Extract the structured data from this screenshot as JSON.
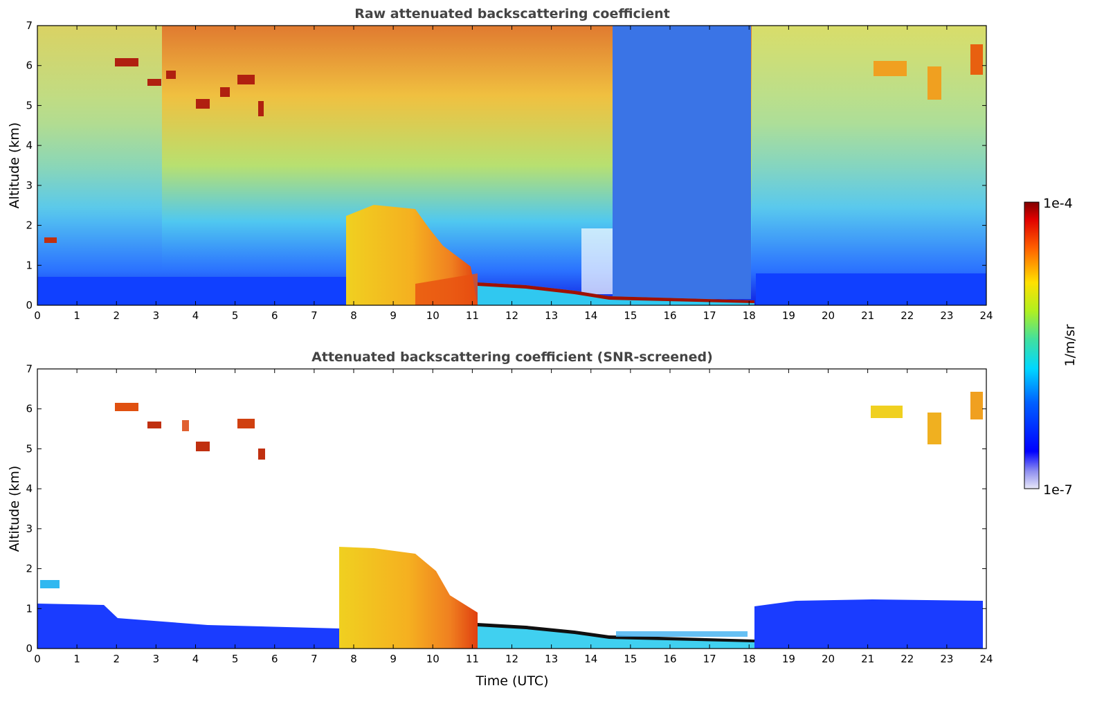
{
  "chart_data": [
    {
      "type": "heatmap",
      "title": "Raw attenuated backscattering coefficient",
      "xlabel": "",
      "ylabel": "Altitude (km)",
      "xlim": [
        0,
        24
      ],
      "ylim": [
        0,
        7
      ],
      "xticks": [
        "0",
        "1",
        "2",
        "3",
        "4",
        "5",
        "6",
        "7",
        "8",
        "9",
        "10",
        "11",
        "12",
        "13",
        "14",
        "15",
        "16",
        "17",
        "18",
        "19",
        "20",
        "21",
        "22",
        "23",
        "24"
      ],
      "yticks": [
        "0",
        "1",
        "2",
        "3",
        "4",
        "5",
        "6",
        "7"
      ],
      "features": [
        {
          "name": "noisy background signal",
          "x_range": [
            0,
            24
          ],
          "y_range": [
            0,
            7
          ]
        },
        {
          "name": "low boundary layer signal",
          "x_range": [
            0,
            7.8
          ],
          "y_range": [
            0,
            0.5
          ]
        },
        {
          "name": "dense cloud / precipitation",
          "x_range": [
            7.8,
            11.2
          ],
          "y_range": [
            0,
            2.5
          ]
        },
        {
          "name": "descending cloud base layer",
          "x_range": [
            11.2,
            18.2
          ],
          "y_range": [
            0,
            0.5
          ]
        },
        {
          "name": "low-noise region",
          "x_range": [
            14.5,
            18.2
          ],
          "y_range": [
            0.5,
            7
          ]
        },
        {
          "name": "mid-level clouds",
          "x_range": [
            1.9,
            6
          ],
          "y_range": [
            4.6,
            6.2
          ]
        },
        {
          "name": "upper clouds",
          "x_range": [
            21,
            24
          ],
          "y_range": [
            4.8,
            6.6
          ]
        },
        {
          "name": "isolated low cloud",
          "x_range": [
            0.1,
            1.3
          ],
          "y_range": [
            1.5,
            1.7
          ]
        }
      ]
    },
    {
      "type": "heatmap",
      "title": "Attenuated backscattering coefficient (SNR-screened)",
      "xlabel": "Time (UTC)",
      "ylabel": "Altitude (km)",
      "xlim": [
        0,
        24
      ],
      "ylim": [
        0,
        7
      ],
      "xticks": [
        "0",
        "1",
        "2",
        "3",
        "4",
        "5",
        "6",
        "7",
        "8",
        "9",
        "10",
        "11",
        "12",
        "13",
        "14",
        "15",
        "16",
        "17",
        "18",
        "19",
        "20",
        "21",
        "22",
        "23",
        "24"
      ],
      "yticks": [
        "0",
        "1",
        "2",
        "3",
        "4",
        "5",
        "6",
        "7"
      ],
      "features": [
        {
          "name": "boundary layer (blue)",
          "x_range": [
            0,
            7.8
          ],
          "y_range": [
            0,
            1.1
          ]
        },
        {
          "name": "dense cloud / precipitation",
          "x_range": [
            7.8,
            11.2
          ],
          "y_range": [
            0,
            2.5
          ]
        },
        {
          "name": "descending cloud base layer",
          "x_range": [
            11.2,
            18.2
          ],
          "y_range": [
            0,
            0.5
          ]
        },
        {
          "name": "boundary layer (blue)",
          "x_range": [
            18.2,
            23.9
          ],
          "y_range": [
            0,
            1.2
          ]
        },
        {
          "name": "mid-level clouds",
          "x_range": [
            1.9,
            6
          ],
          "y_range": [
            4.6,
            6.2
          ]
        },
        {
          "name": "upper clouds",
          "x_range": [
            21,
            24
          ],
          "y_range": [
            4.8,
            6.6
          ]
        }
      ]
    }
  ],
  "colorbar": {
    "label": "1/m/sr",
    "max_label": "1e-4",
    "min_label": "1e-7",
    "scale": "log",
    "colormap": "jet"
  }
}
